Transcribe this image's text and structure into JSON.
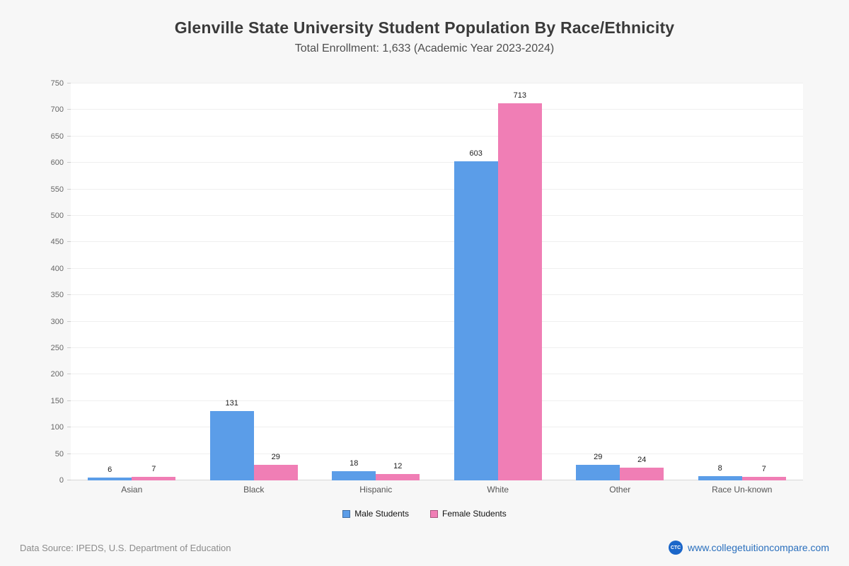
{
  "title": "Glenville State University Student Population By Race/Ethnicity",
  "subtitle": "Total Enrollment: 1,633 (Academic Year 2023-2024)",
  "footer": {
    "source": "Data Source: IPEDS, U.S. Department of Education",
    "logo_text": "CTC",
    "site": "www.collegetuitioncompare.com"
  },
  "chart_data": {
    "type": "bar",
    "title": "Glenville State University Student Population By Race/Ethnicity",
    "subtitle": "Total Enrollment: 1,633 (Academic Year 2023-2024)",
    "categories": [
      "Asian",
      "Black",
      "Hispanic",
      "White",
      "Other",
      "Race Un-known"
    ],
    "series": [
      {
        "name": "Male Students",
        "color": "#5b9de8",
        "values": [
          6,
          131,
          18,
          603,
          29,
          8
        ]
      },
      {
        "name": "Female Students",
        "color": "#f07eb5",
        "values": [
          7,
          29,
          12,
          713,
          24,
          7
        ]
      }
    ],
    "xlabel": "",
    "ylabel": "",
    "ylim": [
      0,
      750
    ],
    "ytick_step": 50,
    "grid": true,
    "legend_position": "bottom"
  }
}
